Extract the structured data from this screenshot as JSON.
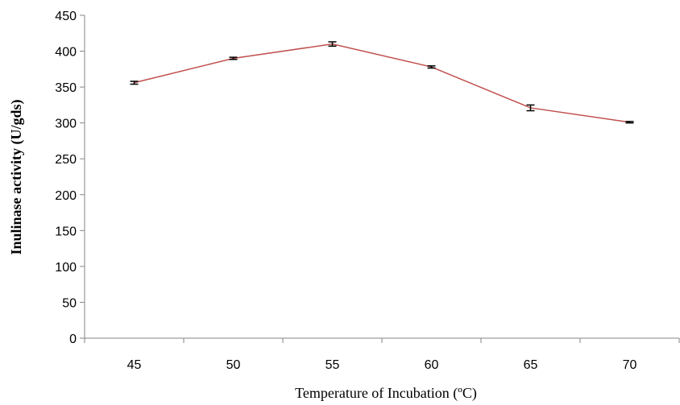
{
  "chart_data": {
    "type": "line",
    "xlabel": "Temperature of Incubation (ºC)",
    "ylabel": "Inulinase activity (U/gds)",
    "categories": [
      "45",
      "50",
      "55",
      "60",
      "65",
      "70"
    ],
    "series": [
      {
        "values": [
          356,
          390,
          410,
          378,
          321,
          301
        ],
        "errors": [
          2,
          1.5,
          3,
          1.5,
          4,
          1
        ],
        "color": "#c0504d"
      }
    ],
    "ylim": [
      0,
      450
    ],
    "yticks": [
      "0",
      "50",
      "100",
      "150",
      "200",
      "250",
      "300",
      "350",
      "400",
      "450"
    ],
    "grid": false,
    "legend": "none",
    "axis_color": "#868686"
  }
}
